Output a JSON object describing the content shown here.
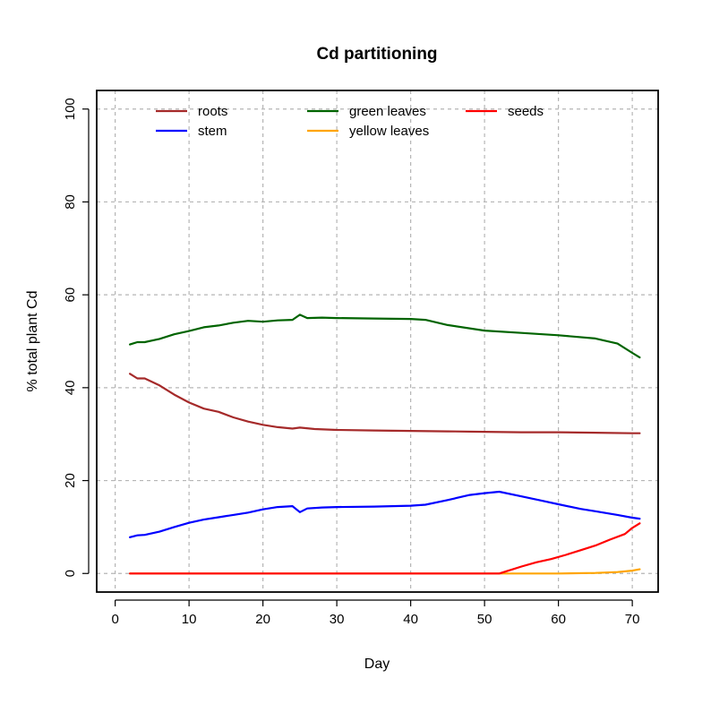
{
  "chart_data": {
    "type": "line",
    "title": "Cd partitioning",
    "xlabel": "Day",
    "ylabel": "% total plant Cd",
    "xlim": [
      -2.5,
      73.5
    ],
    "ylim": [
      -4,
      104
    ],
    "xticks": [
      0,
      10,
      20,
      30,
      40,
      50,
      60,
      70
    ],
    "yticks": [
      0,
      20,
      40,
      60,
      80,
      100
    ],
    "grid": true,
    "legend_position": "top",
    "series": [
      {
        "name": "roots",
        "color": "#a52a2a",
        "x": [
          2,
          3,
          4,
          6,
          8,
          10,
          12,
          14,
          16,
          18,
          20,
          22,
          24,
          25,
          27,
          30,
          35,
          40,
          45,
          50,
          55,
          60,
          65,
          70,
          71
        ],
        "y": [
          43,
          42,
          42,
          40.5,
          38.5,
          36.8,
          35.5,
          34.8,
          33.6,
          32.7,
          32,
          31.5,
          31.2,
          31.4,
          31.1,
          30.9,
          30.8,
          30.7,
          30.6,
          30.5,
          30.4,
          30.4,
          30.3,
          30.2,
          30.2
        ]
      },
      {
        "name": "green leaves",
        "color": "#006400",
        "x": [
          2,
          3,
          4,
          6,
          8,
          10,
          12,
          14,
          16,
          18,
          20,
          22,
          24,
          25,
          26,
          28,
          30,
          35,
          40,
          42,
          45,
          50,
          55,
          60,
          65,
          68,
          70,
          71
        ],
        "y": [
          49.3,
          49.8,
          49.8,
          50.5,
          51.5,
          52.2,
          53,
          53.4,
          54,
          54.4,
          54.2,
          54.5,
          54.6,
          55.7,
          55,
          55.1,
          55,
          54.9,
          54.8,
          54.6,
          53.5,
          52.3,
          51.8,
          51.3,
          50.6,
          49.5,
          47.5,
          46.5
        ]
      },
      {
        "name": "stem",
        "color": "#0000ff",
        "x": [
          2,
          3,
          4,
          6,
          8,
          10,
          12,
          14,
          16,
          18,
          20,
          22,
          24,
          25,
          26,
          28,
          30,
          35,
          40,
          42,
          45,
          48,
          50,
          52,
          55,
          58,
          60,
          63,
          65,
          68,
          70,
          71
        ],
        "y": [
          7.8,
          8.2,
          8.3,
          9,
          10,
          10.9,
          11.6,
          12.1,
          12.6,
          13.1,
          13.8,
          14.3,
          14.5,
          13.2,
          14,
          14.2,
          14.3,
          14.4,
          14.6,
          14.8,
          15.8,
          16.9,
          17.3,
          17.6,
          16.6,
          15.6,
          14.9,
          13.9,
          13.4,
          12.6,
          12,
          11.8
        ]
      },
      {
        "name": "yellow leaves",
        "color": "#ffa500",
        "x": [
          2,
          10,
          20,
          30,
          40,
          50,
          52,
          55,
          60,
          65,
          68,
          70,
          71
        ],
        "y": [
          0,
          0,
          0,
          0,
          0,
          0,
          0,
          0,
          0,
          0.1,
          0.3,
          0.6,
          0.9
        ]
      },
      {
        "name": "seeds",
        "color": "#ff0000",
        "x": [
          2,
          10,
          20,
          30,
          40,
          50,
          52,
          53,
          55,
          57,
          59,
          61,
          63,
          65,
          67,
          69,
          70,
          71
        ],
        "y": [
          0,
          0,
          0,
          0,
          0,
          0,
          0,
          0.5,
          1.5,
          2.4,
          3.1,
          4,
          5,
          6,
          7.3,
          8.5,
          9.8,
          10.8
        ]
      }
    ],
    "legend": [
      {
        "name": "roots",
        "color": "#a52a2a"
      },
      {
        "name": "green leaves",
        "color": "#006400"
      },
      {
        "name": "seeds",
        "color": "#ff0000"
      },
      {
        "name": "stem",
        "color": "#0000ff"
      },
      {
        "name": "yellow leaves",
        "color": "#ffa500"
      }
    ]
  }
}
